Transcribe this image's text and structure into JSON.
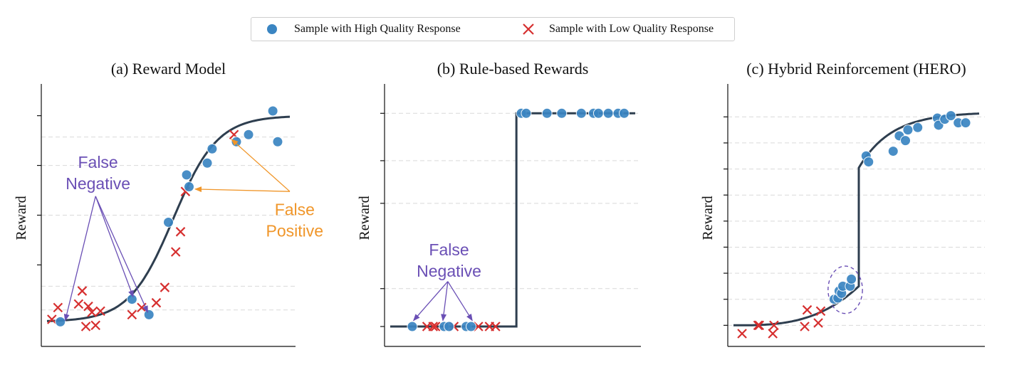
{
  "legend": {
    "high_label": "Sample with High Quality Response",
    "low_label": "Sample with Low Quality Response"
  },
  "colors": {
    "high": "#3a85c2",
    "low": "#d62f2f",
    "curve": "#2e3e4f",
    "fn_annotation": "#6a4fb5",
    "fp_annotation": "#f0962a",
    "grid": "#d9d9d9"
  },
  "chart_data": [
    {
      "type": "scatter",
      "title": "(a) Reward Model",
      "ylabel": "Reward",
      "xlim": [
        0,
        10
      ],
      "ylim": [
        0,
        10
      ],
      "grid": "y-dashed",
      "curve": {
        "kind": "sigmoid",
        "low": 0.5,
        "high": 9.2,
        "center": 5.2,
        "steepness": 1.1
      },
      "high_points": [
        [
          0.55,
          0.5
        ],
        [
          3.5,
          1.45
        ],
        [
          4.2,
          0.8
        ],
        [
          5.0,
          4.7
        ],
        [
          5.75,
          6.7
        ],
        [
          5.85,
          6.2
        ],
        [
          6.6,
          7.2
        ],
        [
          6.8,
          7.8
        ],
        [
          7.8,
          8.1
        ],
        [
          8.3,
          8.4
        ],
        [
          9.3,
          9.4
        ],
        [
          9.5,
          8.1
        ]
      ],
      "low_points": [
        [
          0.2,
          0.6
        ],
        [
          0.45,
          1.1
        ],
        [
          1.3,
          1.25
        ],
        [
          1.45,
          1.8
        ],
        [
          1.6,
          0.3
        ],
        [
          1.7,
          1.15
        ],
        [
          1.85,
          0.9
        ],
        [
          2.0,
          0.35
        ],
        [
          2.2,
          0.95
        ],
        [
          3.5,
          0.8
        ],
        [
          3.9,
          1.1
        ],
        [
          4.5,
          1.3
        ],
        [
          4.85,
          1.95
        ],
        [
          5.3,
          3.45
        ],
        [
          5.5,
          4.3
        ],
        [
          5.7,
          6.0
        ],
        [
          7.7,
          8.4
        ]
      ],
      "annotations": [
        {
          "text_lines": [
            "False",
            "Negative"
          ],
          "color": "fn",
          "label_at": [
            2.1,
            7.0
          ],
          "arrows_from": [
            2.0,
            5.8
          ],
          "arrows_to": [
            [
              0.75,
              0.55
            ],
            [
              3.55,
              1.55
            ],
            [
              4.15,
              0.9
            ]
          ]
        },
        {
          "text_lines": [
            "False",
            "Positive"
          ],
          "color": "fp",
          "label_at": [
            10.2,
            5.0
          ],
          "arrows_from": [
            10.0,
            6.0
          ],
          "arrows_to": [
            [
              7.6,
              8.2
            ],
            [
              6.1,
              6.1
            ]
          ]
        }
      ]
    },
    {
      "type": "scatter",
      "title": "(b) Rule-based Rewards",
      "ylabel": "Reward",
      "xlim": [
        0,
        10
      ],
      "ylim": [
        0,
        10
      ],
      "grid": "y-dashed",
      "curve": {
        "kind": "step",
        "low": 0.3,
        "high": 9.3,
        "step_at": 5.15
      },
      "high_points": [
        [
          0.9,
          0.3
        ],
        [
          2.2,
          0.3
        ],
        [
          2.4,
          0.3
        ],
        [
          3.1,
          0.3
        ],
        [
          3.3,
          0.3
        ],
        [
          5.35,
          9.3
        ],
        [
          5.55,
          9.3
        ],
        [
          6.4,
          9.3
        ],
        [
          7.0,
          9.3
        ],
        [
          7.8,
          9.3
        ],
        [
          8.3,
          9.3
        ],
        [
          8.5,
          9.3
        ],
        [
          8.9,
          9.3
        ],
        [
          9.3,
          9.3
        ],
        [
          9.55,
          9.3
        ]
      ],
      "low_points": [
        [
          1.5,
          0.3
        ],
        [
          1.75,
          0.3
        ],
        [
          1.85,
          0.3
        ],
        [
          2.6,
          0.3
        ],
        [
          3.6,
          0.3
        ],
        [
          4.05,
          0.3
        ],
        [
          4.3,
          0.3
        ]
      ],
      "annotations": [
        {
          "text_lines": [
            "False",
            "Negative"
          ],
          "color": "fn",
          "label_at": [
            2.4,
            3.3
          ],
          "arrows_from": [
            2.35,
            2.2
          ],
          "arrows_to": [
            [
              0.95,
              0.55
            ],
            [
              2.15,
              0.55
            ],
            [
              3.35,
              0.55
            ]
          ]
        }
      ]
    },
    {
      "type": "scatter",
      "title": "(c) Hybrid Reinforcement (HERO)",
      "ylabel": "Reward",
      "xlim": [
        0,
        10
      ],
      "ylim": [
        0,
        10
      ],
      "grid": "y-dashed",
      "curve": {
        "kind": "hybrid",
        "low": 0.35,
        "mid": 2.0,
        "jump_at": 5.1,
        "plateau": 9.35
      },
      "high_points": [
        [
          4.1,
          1.45
        ],
        [
          4.25,
          1.5
        ],
        [
          4.3,
          1.8
        ],
        [
          4.4,
          1.7
        ],
        [
          4.45,
          2.0
        ],
        [
          4.75,
          2.0
        ],
        [
          4.8,
          2.3
        ],
        [
          5.4,
          7.5
        ],
        [
          5.5,
          7.25
        ],
        [
          6.5,
          7.7
        ],
        [
          6.75,
          8.35
        ],
        [
          7.0,
          8.15
        ],
        [
          7.1,
          8.6
        ],
        [
          7.5,
          8.7
        ],
        [
          8.3,
          9.1
        ],
        [
          8.35,
          8.8
        ],
        [
          8.6,
          9.05
        ],
        [
          8.85,
          9.2
        ],
        [
          9.15,
          8.9
        ],
        [
          9.45,
          8.9
        ]
      ],
      "low_points": [
        [
          0.35,
          0.0
        ],
        [
          1.0,
          0.35
        ],
        [
          1.05,
          0.35
        ],
        [
          1.6,
          0.0
        ],
        [
          1.65,
          0.35
        ],
        [
          2.9,
          0.3
        ],
        [
          3.0,
          1.0
        ],
        [
          3.45,
          0.45
        ],
        [
          3.55,
          0.95
        ]
      ],
      "highlight_ellipse": {
        "cx": 4.55,
        "cy": 1.85,
        "rx": 0.7,
        "ry": 1.0
      }
    }
  ]
}
